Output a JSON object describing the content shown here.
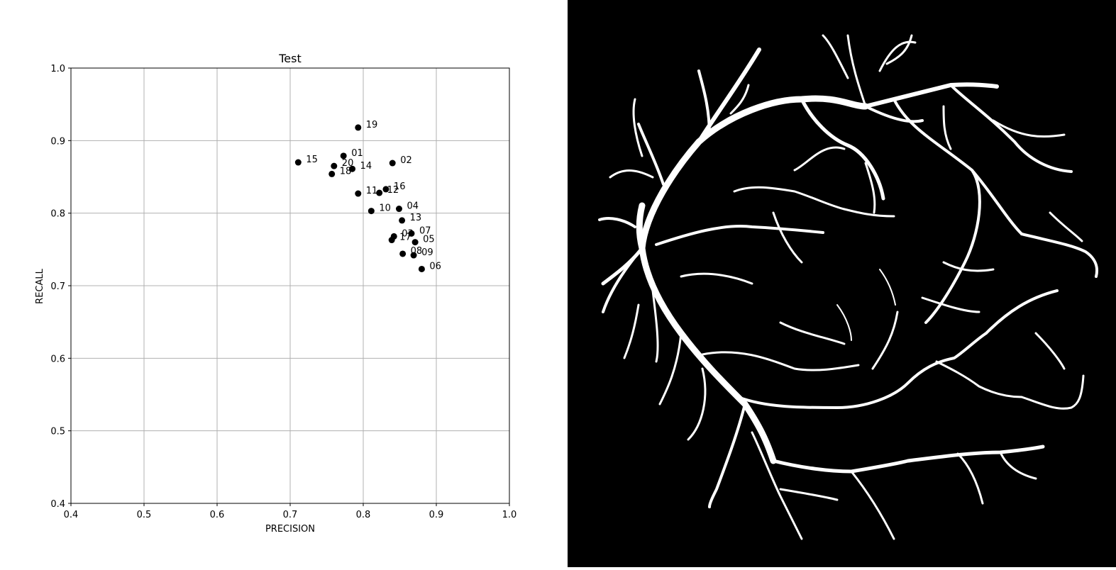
{
  "chart_data": {
    "type": "scatter",
    "title": "Test",
    "xlabel": "PRECISION",
    "ylabel": "RECALL",
    "xlim": [
      0.4,
      1.0
    ],
    "ylim": [
      0.4,
      1.0
    ],
    "xticks": [
      "0.4",
      "0.5",
      "0.6",
      "0.7",
      "0.8",
      "0.9",
      "1.0"
    ],
    "yticks": [
      "0.4",
      "0.5",
      "0.6",
      "0.7",
      "0.8",
      "0.9",
      "1.0"
    ],
    "grid": true,
    "marker_color": "#000000",
    "points": [
      {
        "label": "01",
        "x": 0.773,
        "y": 0.879
      },
      {
        "label": "02",
        "x": 0.84,
        "y": 0.869
      },
      {
        "label": "03",
        "x": 0.842,
        "y": 0.768
      },
      {
        "label": "04",
        "x": 0.849,
        "y": 0.806
      },
      {
        "label": "05",
        "x": 0.871,
        "y": 0.76
      },
      {
        "label": "06",
        "x": 0.88,
        "y": 0.723
      },
      {
        "label": "07",
        "x": 0.866,
        "y": 0.772
      },
      {
        "label": "08",
        "x": 0.854,
        "y": 0.744
      },
      {
        "label": "09",
        "x": 0.869,
        "y": 0.742
      },
      {
        "label": "10",
        "x": 0.811,
        "y": 0.803
      },
      {
        "label": "11",
        "x": 0.793,
        "y": 0.827
      },
      {
        "label": "12",
        "x": 0.822,
        "y": 0.828
      },
      {
        "label": "13",
        "x": 0.853,
        "y": 0.79
      },
      {
        "label": "14",
        "x": 0.785,
        "y": 0.861
      },
      {
        "label": "15",
        "x": 0.711,
        "y": 0.87
      },
      {
        "label": "16",
        "x": 0.831,
        "y": 0.833
      },
      {
        "label": "17",
        "x": 0.839,
        "y": 0.763
      },
      {
        "label": "18",
        "x": 0.757,
        "y": 0.854
      },
      {
        "label": "19",
        "x": 0.793,
        "y": 0.918
      },
      {
        "label": "20",
        "x": 0.76,
        "y": 0.865
      }
    ]
  },
  "vessel_image": {
    "background": "#000000",
    "vessel_color": "#ffffff"
  }
}
